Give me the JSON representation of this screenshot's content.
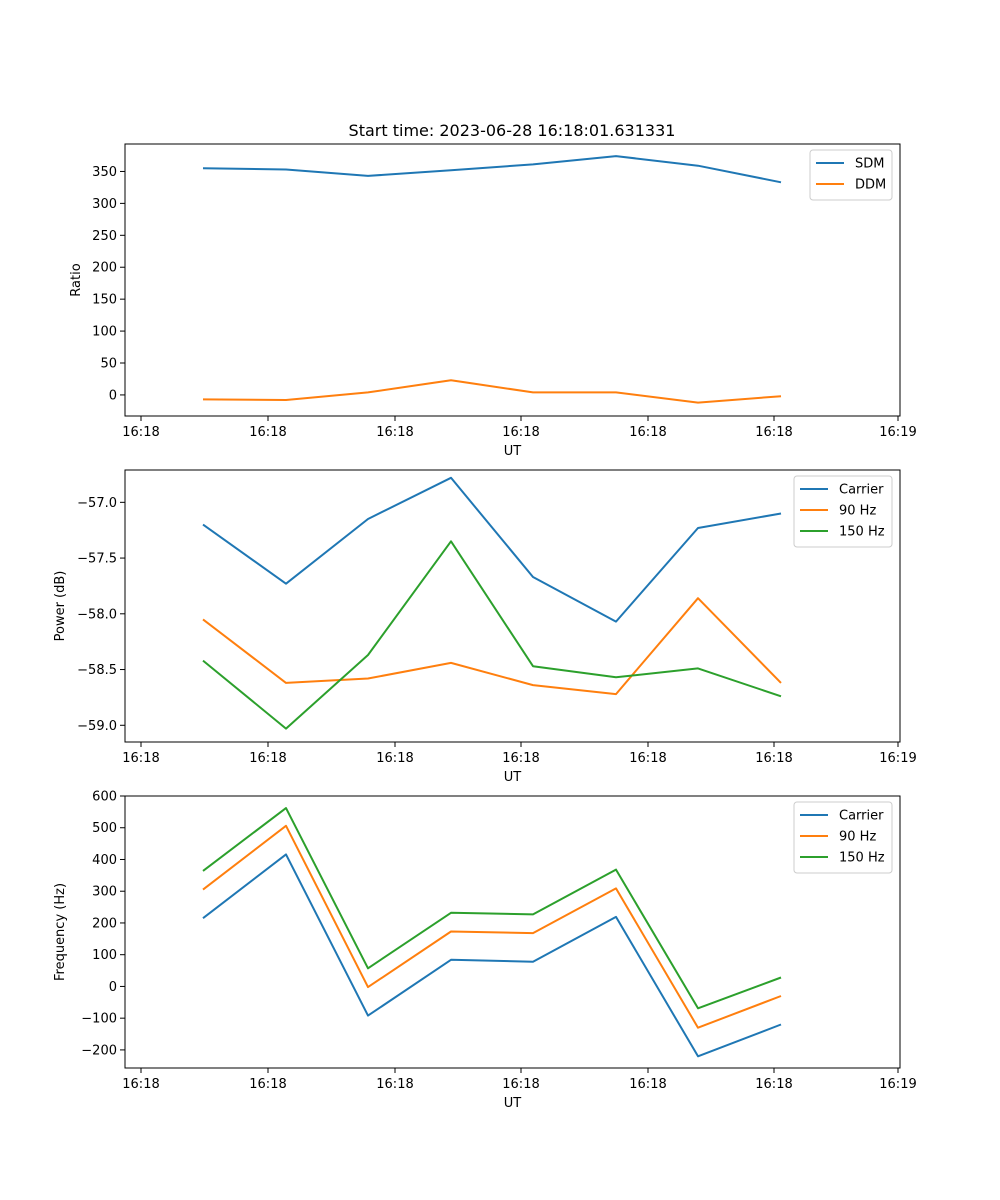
{
  "figure_title": "Start time: 2023-06-28 16:18:01.631331",
  "colors": {
    "blue": "#1f77b4",
    "orange": "#ff7f0e",
    "green": "#2ca02c"
  },
  "chart_data": [
    {
      "type": "line",
      "title": "Start time: 2023-06-28 16:18:01.631331",
      "xlabel": "UT",
      "ylabel": "Ratio",
      "x_tick_labels": [
        "16:18",
        "16:18",
        "16:18",
        "16:18",
        "16:18",
        "16:18",
        "16:19"
      ],
      "y_ticks": [
        0,
        50,
        100,
        150,
        200,
        250,
        300,
        350
      ],
      "ylim": [
        -33,
        393
      ],
      "legend_position": "top-right",
      "grid": false,
      "series": [
        {
          "name": "SDM",
          "color": "#1f77b4",
          "values": [
            355,
            353,
            343,
            352,
            361,
            374,
            359,
            333
          ]
        },
        {
          "name": "DDM",
          "color": "#ff7f0e",
          "values": [
            -7,
            -8,
            4,
            23,
            4,
            4,
            -12,
            -2
          ]
        }
      ]
    },
    {
      "type": "line",
      "xlabel": "UT",
      "ylabel": "Power (dB)",
      "x_tick_labels": [
        "16:18",
        "16:18",
        "16:18",
        "16:18",
        "16:18",
        "16:18",
        "16:19"
      ],
      "y_ticks": [
        -59.0,
        -58.5,
        -58.0,
        -57.5,
        -57.0
      ],
      "y_tick_labels": [
        "−59.0",
        "−58.5",
        "−58.0",
        "−57.5",
        "−57.0"
      ],
      "ylim": [
        -59.15,
        -56.71
      ],
      "legend_position": "top-right",
      "grid": false,
      "series": [
        {
          "name": "Carrier",
          "color": "#1f77b4",
          "values": [
            -57.2,
            -57.73,
            -57.15,
            -56.78,
            -57.67,
            -58.07,
            -57.23,
            -57.1
          ]
        },
        {
          "name": "90 Hz",
          "color": "#ff7f0e",
          "values": [
            -58.05,
            -58.62,
            -58.58,
            -58.44,
            -58.64,
            -58.72,
            -57.86,
            -58.62
          ]
        },
        {
          "name": "150 Hz",
          "color": "#2ca02c",
          "values": [
            -58.42,
            -59.03,
            -58.37,
            -57.35,
            -58.47,
            -58.57,
            -58.49,
            -58.74
          ]
        }
      ]
    },
    {
      "type": "line",
      "xlabel": "UT",
      "ylabel": "Frequency (Hz)",
      "x_tick_labels": [
        "16:18",
        "16:18",
        "16:18",
        "16:18",
        "16:18",
        "16:18",
        "16:19"
      ],
      "y_ticks": [
        -200,
        -100,
        0,
        100,
        200,
        300,
        400,
        500,
        600
      ],
      "y_tick_labels": [
        "−200",
        "−100",
        "0",
        "100",
        "200",
        "300",
        "400",
        "500",
        "600"
      ],
      "ylim": [
        -257,
        600
      ],
      "legend_position": "top-right",
      "grid": false,
      "series": [
        {
          "name": "Carrier",
          "color": "#1f77b4",
          "values": [
            215,
            416,
            -92,
            84,
            78,
            219,
            -220,
            -120
          ]
        },
        {
          "name": "90 Hz",
          "color": "#ff7f0e",
          "values": [
            305,
            506,
            -2,
            173,
            168,
            309,
            -130,
            -30
          ]
        },
        {
          "name": "150 Hz",
          "color": "#2ca02c",
          "values": [
            364,
            562,
            57,
            232,
            227,
            368,
            -69,
            28
          ]
        }
      ]
    }
  ]
}
